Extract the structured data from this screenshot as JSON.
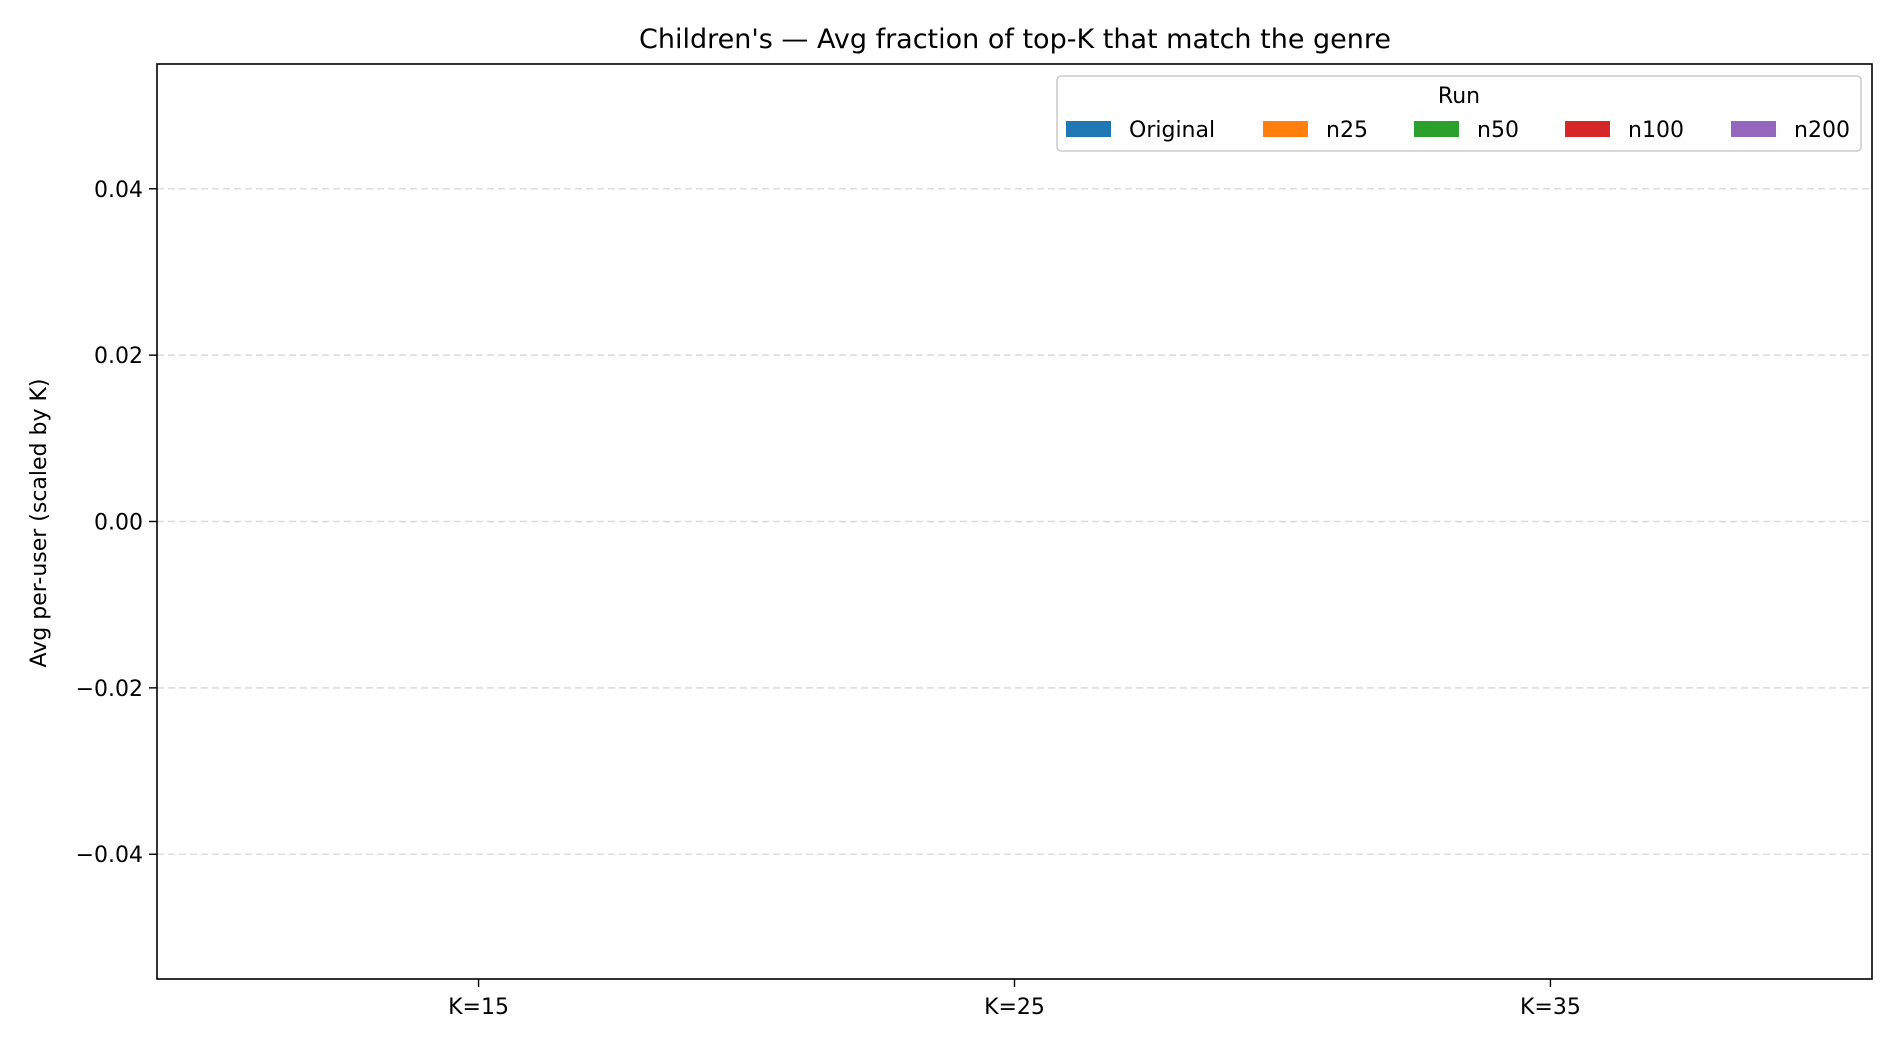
{
  "chart_data": {
    "type": "bar",
    "title": "Children's — Avg fraction of top-K that match the genre",
    "xlabel": "",
    "ylabel": "Avg per-user (scaled by K)",
    "categories": [
      "K=15",
      "K=25",
      "K=35"
    ],
    "ylim": [
      -0.055,
      0.055
    ],
    "yticks": [
      0.04,
      0.02,
      0.0,
      -0.02,
      -0.04
    ],
    "ytick_labels": [
      "0.04",
      "0.02",
      "0.00",
      "−0.02",
      "−0.04"
    ],
    "grid": "y, dashed",
    "legend": {
      "title": "Run",
      "placement": "top-right"
    },
    "series": [
      {
        "name": "Original",
        "color": "#1f77b4",
        "values": [
          0,
          0,
          0
        ]
      },
      {
        "name": "n25",
        "color": "#ff7f0e",
        "values": [
          0,
          0,
          0
        ]
      },
      {
        "name": "n50",
        "color": "#2ca02c",
        "values": [
          0,
          0,
          0
        ]
      },
      {
        "name": "n100",
        "color": "#d62728",
        "values": [
          0,
          0,
          0
        ]
      },
      {
        "name": "n200",
        "color": "#9467bd",
        "values": [
          0,
          0,
          0
        ]
      }
    ]
  }
}
